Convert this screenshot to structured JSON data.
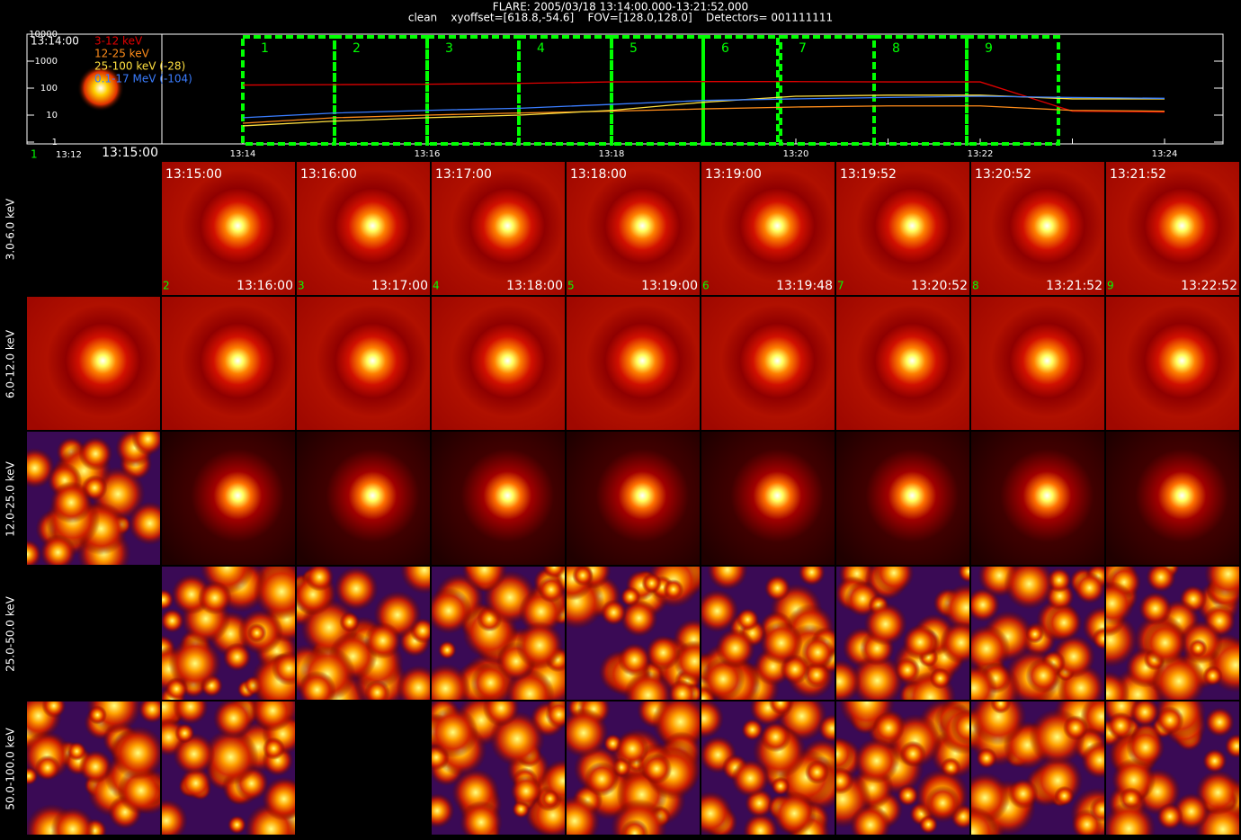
{
  "header": {
    "title": "FLARE: 2005/03/18 13:14:00.000-13:21:52.000",
    "subtitle": "clean    xyoffset=[618.8,-54.6]    FOV=[128.0,128.0]    Detectors= 001111111"
  },
  "chart_data": {
    "type": "line",
    "categories": [
      "13:14",
      null,
      "13:16",
      null,
      "13:18",
      null,
      "13:20",
      null,
      "13:22",
      null,
      "13:24"
    ],
    "series": [
      {
        "name": "3-12 keV",
        "color": "#e00000",
        "values": [
          130,
          135,
          140,
          150,
          170,
          175,
          175,
          170,
          170,
          14,
          13
        ]
      },
      {
        "name": "12-25 keV",
        "color": "#ff8c1a",
        "values": [
          5,
          8,
          10,
          12,
          14,
          17,
          20,
          22,
          22,
          15,
          14
        ]
      },
      {
        "name": "25-100 keV (-28)",
        "color": "#ffe040",
        "values": [
          4,
          6,
          8,
          10,
          15,
          30,
          50,
          55,
          55,
          40,
          40
        ]
      },
      {
        "name": "0.1-17 MeV (-104)",
        "color": "#3a7dff",
        "values": [
          8,
          12,
          15,
          18,
          25,
          35,
          40,
          45,
          50,
          45,
          42
        ]
      }
    ],
    "ylim": [
      1,
      10000
    ],
    "yticks": [
      1,
      10,
      100,
      1000,
      10000
    ],
    "log": true,
    "intervals": [
      "1",
      "2",
      "3",
      "4",
      "5",
      "6",
      "7",
      "8",
      "9"
    ],
    "interval_color": "#00ff00"
  },
  "inset": {
    "start": "13:14:00",
    "end": "13:15:00",
    "index": "1",
    "axis_start": "13:12"
  },
  "panels": {
    "bands": [
      "3.0-6.0 keV",
      "6.0-12.0 keV",
      "12.0-25.0 keV",
      "25.0-50.0 keV",
      "50.0-100.0 keV"
    ],
    "start_times": [
      "13:15:00",
      "13:16:00",
      "13:17:00",
      "13:18:00",
      "13:19:00",
      "13:19:52",
      "13:20:52",
      "13:21:52"
    ],
    "end_times": [
      "13:16:00",
      "13:17:00",
      "13:18:00",
      "13:19:00",
      "13:19:48",
      "13:20:52",
      "13:21:52",
      "13:22:52"
    ],
    "indices": [
      "2",
      "3",
      "4",
      "5",
      "6",
      "7",
      "8",
      "9"
    ]
  }
}
